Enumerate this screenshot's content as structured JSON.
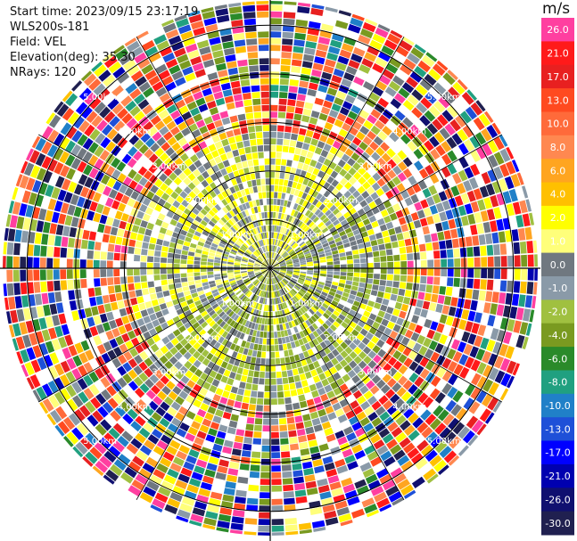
{
  "info": {
    "start_time": "Start time: 2023/09/15 23:17:19",
    "instrument": "WLS200s-181",
    "field": "Field: VEL",
    "elevation": "Elevation(deg): 35.30",
    "nrays": "NRays: 120"
  },
  "ring_labels": [
    "1.00km",
    "2.00km",
    "3.00km",
    "4.00km",
    "5.00km"
  ],
  "colorbar": {
    "unit": "m/s",
    "ticks": [
      "26.0",
      "21.0",
      "17.0",
      "13.0",
      "10.0",
      "8.0",
      "6.0",
      "4.0",
      "2.0",
      "1.0",
      "0.0",
      "-1.0",
      "-2.0",
      "-4.0",
      "-6.0",
      "-8.0",
      "-10.0",
      "-13.0",
      "-17.0",
      "-21.0",
      "-26.0",
      "-30.0"
    ],
    "colors": [
      "#ff3fa0",
      "#ff1a1a",
      "#e82020",
      "#ff4a20",
      "#ff6a3a",
      "#ff8850",
      "#ffa520",
      "#ffc000",
      "#ffff00",
      "#ffff7a",
      "#707880",
      "#8a9aa8",
      "#a0c040",
      "#7a9a20",
      "#2a8a2a",
      "#20a080",
      "#2080c8",
      "#1e50d8",
      "#0000ff",
      "#0000b0",
      "#101070",
      "#202050"
    ]
  }
}
